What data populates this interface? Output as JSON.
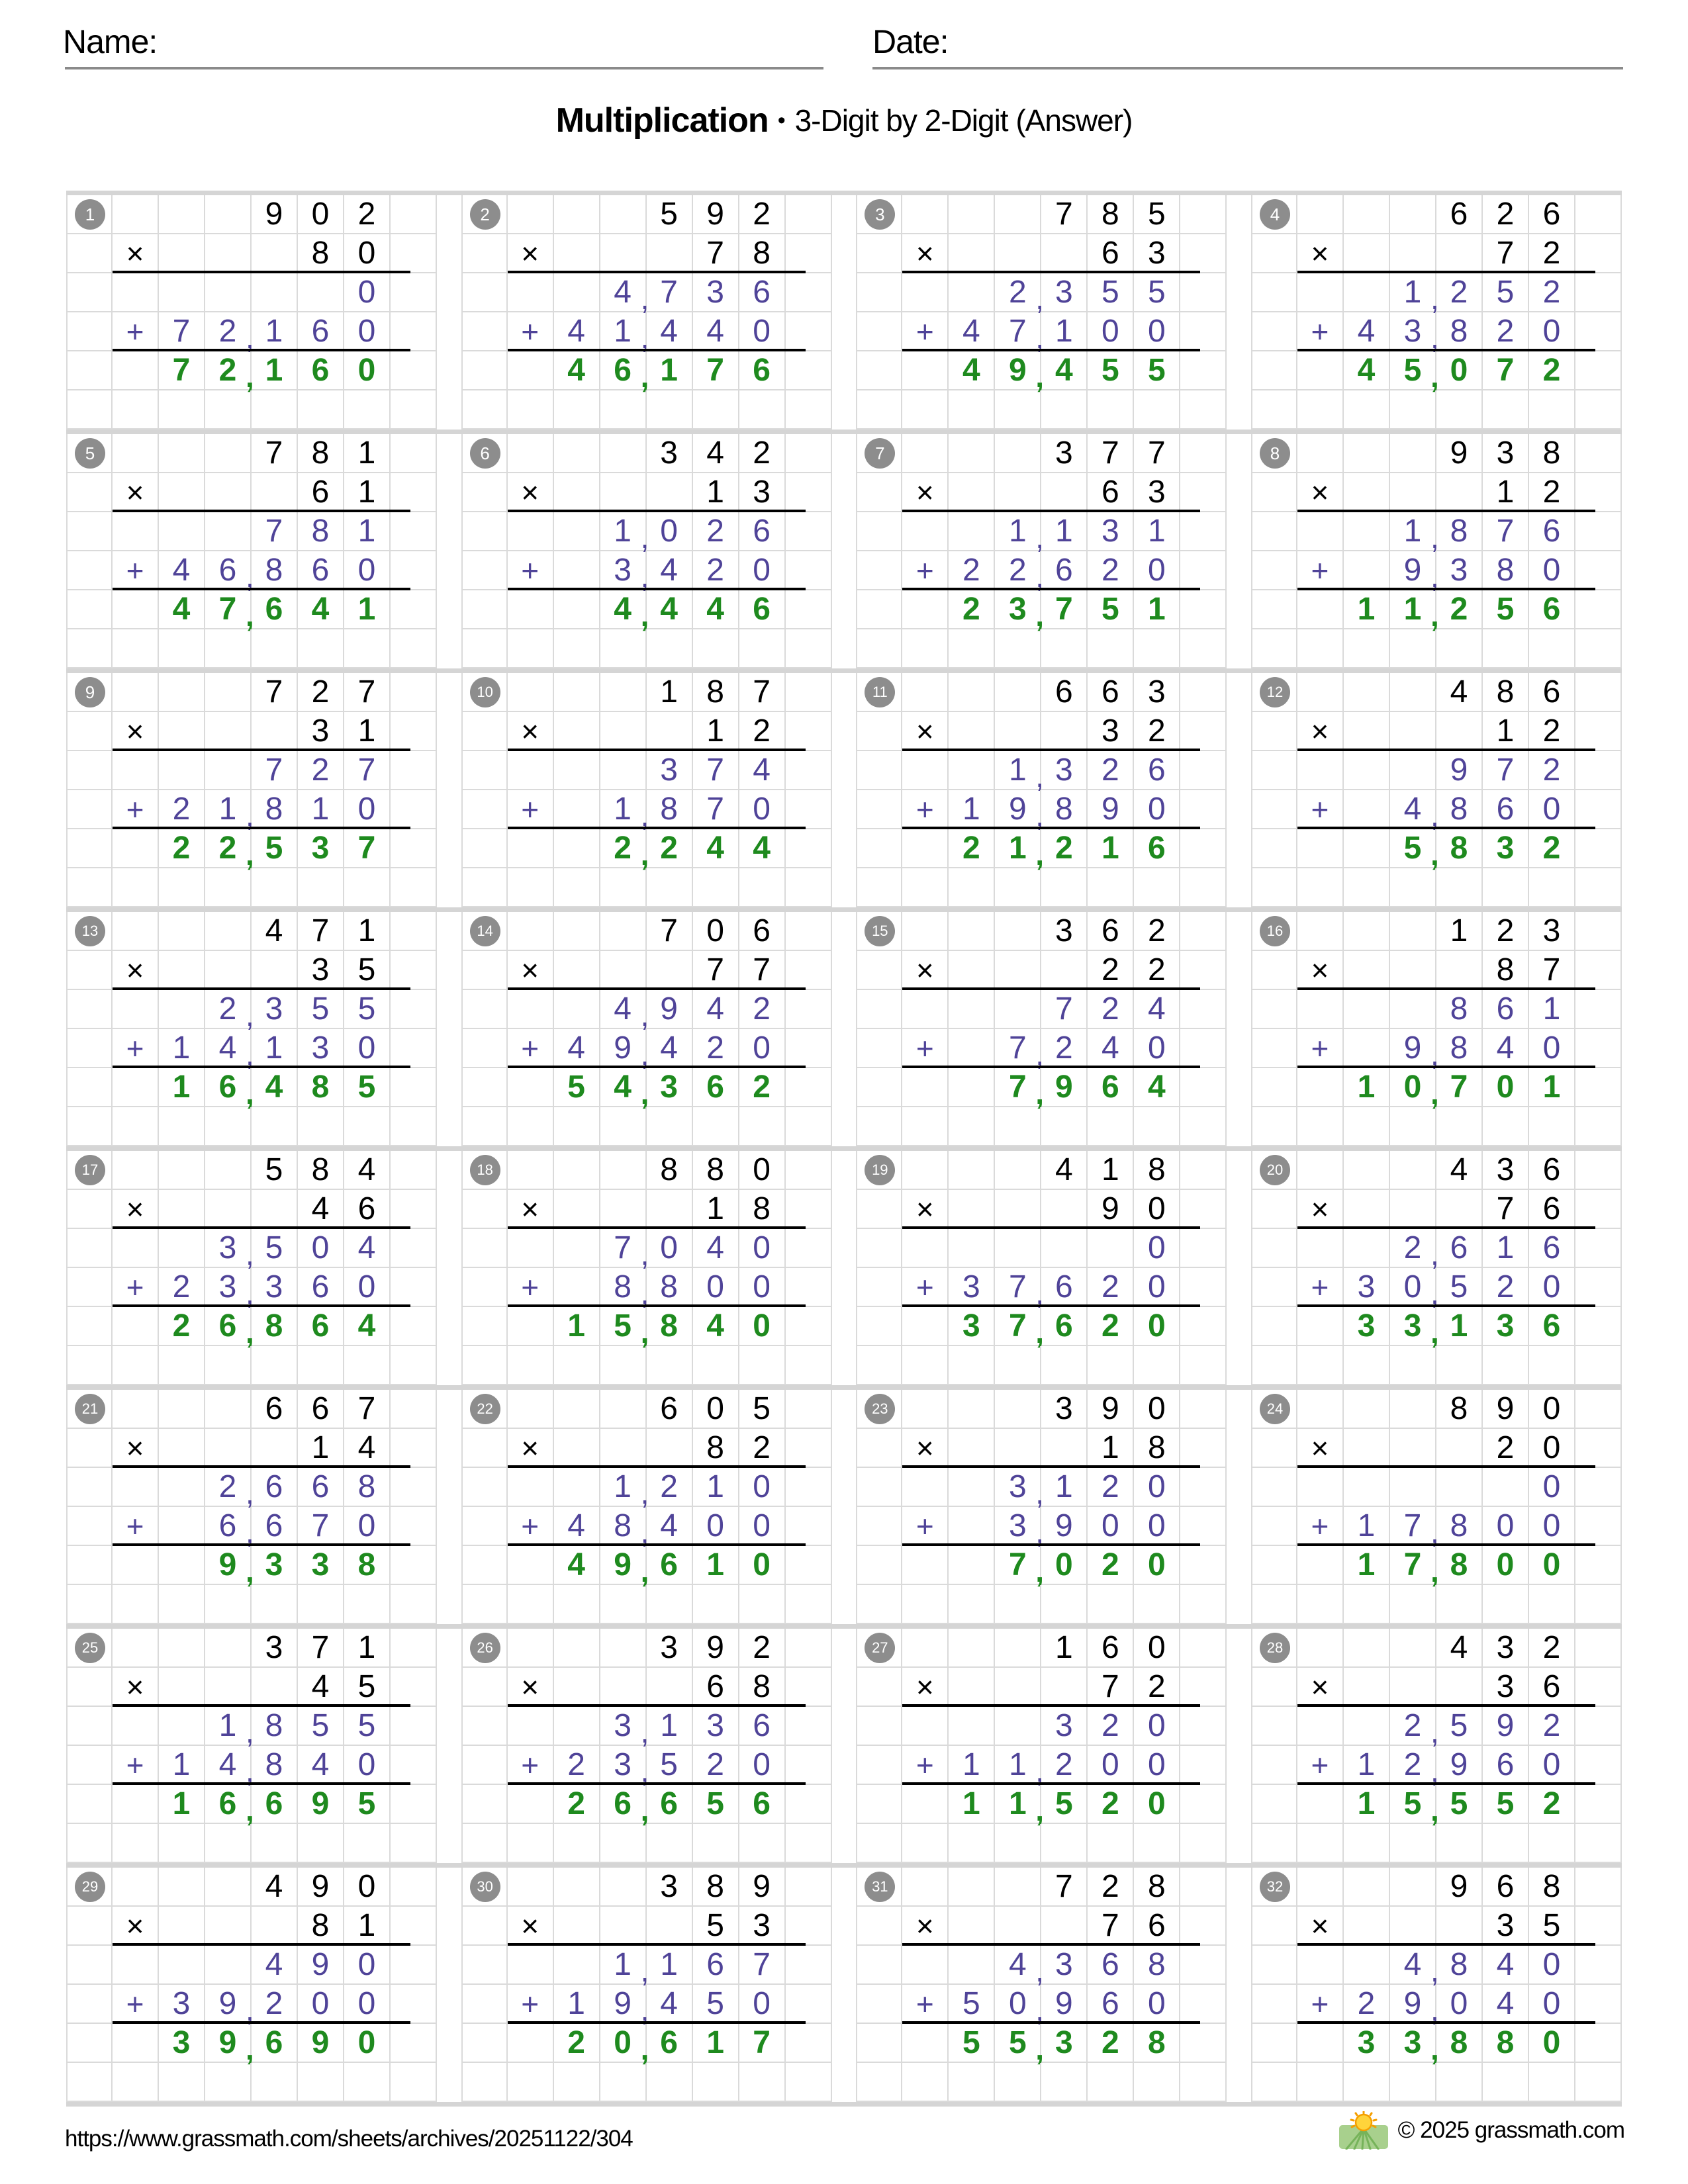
{
  "header": {
    "name_label": "Name:",
    "date_label": "Date:"
  },
  "title": {
    "main": "Multiplication",
    "bullet": "•",
    "sub": "3-Digit by 2-Digit (Answer)"
  },
  "signs": {
    "multiply": "×",
    "plus": "+"
  },
  "colors": {
    "partial_purple": "#4f4398",
    "answer_green": "#1e8a1e",
    "badge_gray": "#8d8d8d",
    "grid_line": "#dadada",
    "band_gray": "#d5d5d5",
    "rule_black": "#000000"
  },
  "footer": {
    "url": "https://www.grassmath.com/sheets/archives/20251122/304",
    "logo_icon": "sun-over-field",
    "copyright": "© 2025 grassmath.com"
  },
  "problems": [
    {
      "num": 1,
      "multiplicand": "902",
      "multiplier": "80",
      "partial1": "0",
      "partial2": "72,160",
      "answer": "72,160"
    },
    {
      "num": 2,
      "multiplicand": "592",
      "multiplier": "78",
      "partial1": "4,736",
      "partial2": "41,440",
      "answer": "46,176"
    },
    {
      "num": 3,
      "multiplicand": "785",
      "multiplier": "63",
      "partial1": "2,355",
      "partial2": "47,100",
      "answer": "49,455"
    },
    {
      "num": 4,
      "multiplicand": "626",
      "multiplier": "72",
      "partial1": "1,252",
      "partial2": "43,820",
      "answer": "45,072"
    },
    {
      "num": 5,
      "multiplicand": "781",
      "multiplier": "61",
      "partial1": "781",
      "partial2": "46,860",
      "answer": "47,641"
    },
    {
      "num": 6,
      "multiplicand": "342",
      "multiplier": "13",
      "partial1": "1,026",
      "partial2": "3,420",
      "answer": "4,446"
    },
    {
      "num": 7,
      "multiplicand": "377",
      "multiplier": "63",
      "partial1": "1,131",
      "partial2": "22,620",
      "answer": "23,751"
    },
    {
      "num": 8,
      "multiplicand": "938",
      "multiplier": "12",
      "partial1": "1,876",
      "partial2": "9,380",
      "answer": "11,256"
    },
    {
      "num": 9,
      "multiplicand": "727",
      "multiplier": "31",
      "partial1": "727",
      "partial2": "21,810",
      "answer": "22,537"
    },
    {
      "num": 10,
      "multiplicand": "187",
      "multiplier": "12",
      "partial1": "374",
      "partial2": "1,870",
      "answer": "2,244"
    },
    {
      "num": 11,
      "multiplicand": "663",
      "multiplier": "32",
      "partial1": "1,326",
      "partial2": "19,890",
      "answer": "21,216"
    },
    {
      "num": 12,
      "multiplicand": "486",
      "multiplier": "12",
      "partial1": "972",
      "partial2": "4,860",
      "answer": "5,832"
    },
    {
      "num": 13,
      "multiplicand": "471",
      "multiplier": "35",
      "partial1": "2,355",
      "partial2": "14,130",
      "answer": "16,485"
    },
    {
      "num": 14,
      "multiplicand": "706",
      "multiplier": "77",
      "partial1": "4,942",
      "partial2": "49,420",
      "answer": "54,362"
    },
    {
      "num": 15,
      "multiplicand": "362",
      "multiplier": "22",
      "partial1": "724",
      "partial2": "7,240",
      "answer": "7,964"
    },
    {
      "num": 16,
      "multiplicand": "123",
      "multiplier": "87",
      "partial1": "861",
      "partial2": "9,840",
      "answer": "10,701"
    },
    {
      "num": 17,
      "multiplicand": "584",
      "multiplier": "46",
      "partial1": "3,504",
      "partial2": "23,360",
      "answer": "26,864"
    },
    {
      "num": 18,
      "multiplicand": "880",
      "multiplier": "18",
      "partial1": "7,040",
      "partial2": "8,800",
      "answer": "15,840"
    },
    {
      "num": 19,
      "multiplicand": "418",
      "multiplier": "90",
      "partial1": "0",
      "partial2": "37,620",
      "answer": "37,620"
    },
    {
      "num": 20,
      "multiplicand": "436",
      "multiplier": "76",
      "partial1": "2,616",
      "partial2": "30,520",
      "answer": "33,136"
    },
    {
      "num": 21,
      "multiplicand": "667",
      "multiplier": "14",
      "partial1": "2,668",
      "partial2": "6,670",
      "answer": "9,338"
    },
    {
      "num": 22,
      "multiplicand": "605",
      "multiplier": "82",
      "partial1": "1,210",
      "partial2": "48,400",
      "answer": "49,610"
    },
    {
      "num": 23,
      "multiplicand": "390",
      "multiplier": "18",
      "partial1": "3,120",
      "partial2": "3,900",
      "answer": "7,020"
    },
    {
      "num": 24,
      "multiplicand": "890",
      "multiplier": "20",
      "partial1": "0",
      "partial2": "17,800",
      "answer": "17,800"
    },
    {
      "num": 25,
      "multiplicand": "371",
      "multiplier": "45",
      "partial1": "1,855",
      "partial2": "14,840",
      "answer": "16,695"
    },
    {
      "num": 26,
      "multiplicand": "392",
      "multiplier": "68",
      "partial1": "3,136",
      "partial2": "23,520",
      "answer": "26,656"
    },
    {
      "num": 27,
      "multiplicand": "160",
      "multiplier": "72",
      "partial1": "320",
      "partial2": "11,200",
      "answer": "11,520"
    },
    {
      "num": 28,
      "multiplicand": "432",
      "multiplier": "36",
      "partial1": "2,592",
      "partial2": "12,960",
      "answer": "15,552"
    },
    {
      "num": 29,
      "multiplicand": "490",
      "multiplier": "81",
      "partial1": "490",
      "partial2": "39,200",
      "answer": "39,690"
    },
    {
      "num": 30,
      "multiplicand": "389",
      "multiplier": "53",
      "partial1": "1,167",
      "partial2": "19,450",
      "answer": "20,617"
    },
    {
      "num": 31,
      "multiplicand": "728",
      "multiplier": "76",
      "partial1": "4,368",
      "partial2": "50,960",
      "answer": "55,328"
    },
    {
      "num": 32,
      "multiplicand": "968",
      "multiplier": "35",
      "partial1": "4,840",
      "partial2": "29,040",
      "answer": "33,880"
    }
  ]
}
